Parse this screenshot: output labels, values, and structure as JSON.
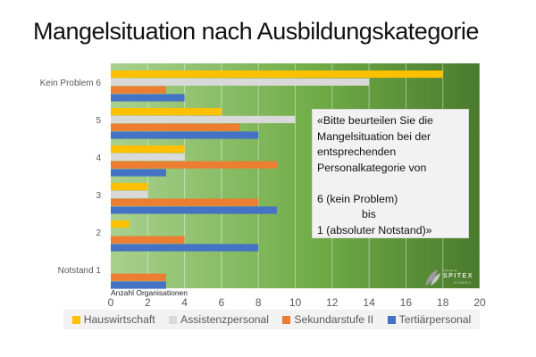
{
  "chart_data": {
    "type": "bar",
    "orientation": "horizontal",
    "title": "Mangelsituation nach Ausbildungskategorie",
    "xlabel": "Anzahl Organisationen",
    "ylabel": "",
    "xlim": [
      0,
      20
    ],
    "xticks": [
      0,
      2,
      4,
      6,
      8,
      10,
      12,
      14,
      16,
      18,
      20
    ],
    "grid": true,
    "legend_position": "bottom",
    "categories": [
      "Kein Problem 6",
      "5",
      "4",
      "3",
      "2",
      "Notstand 1"
    ],
    "series": [
      {
        "name": "Hauswirtschaft",
        "color": "#FFC000",
        "values": [
          18,
          6,
          4,
          2,
          1,
          0
        ]
      },
      {
        "name": "Assistenzpersonal",
        "color": "#D9D9D9",
        "values": [
          14,
          10,
          4,
          2,
          0,
          0
        ]
      },
      {
        "name": "Sekundarstufe II",
        "color": "#ED7D31",
        "values": [
          3,
          7,
          9,
          8,
          4,
          3
        ]
      },
      {
        "name": "Tertiärpersonal",
        "color": "#4472C4",
        "values": [
          4,
          8,
          3,
          9,
          8,
          3
        ]
      }
    ],
    "background_gradient": [
      "#a9d18e",
      "#70ad47",
      "#4a7a2c"
    ]
  },
  "note": {
    "lines": [
      "«Bitte beurteilen Sie die",
      "Mangelsituation bei der",
      "entsprechenden",
      "Personalkategorie von",
      "",
      "6  (kein Problem)",
      "bis",
      "1  (absoluter Notstand)»"
    ]
  },
  "logo": {
    "text": "SPITEX",
    "small_top": "Verband der",
    "small_sub": "SCHWEIZ"
  }
}
